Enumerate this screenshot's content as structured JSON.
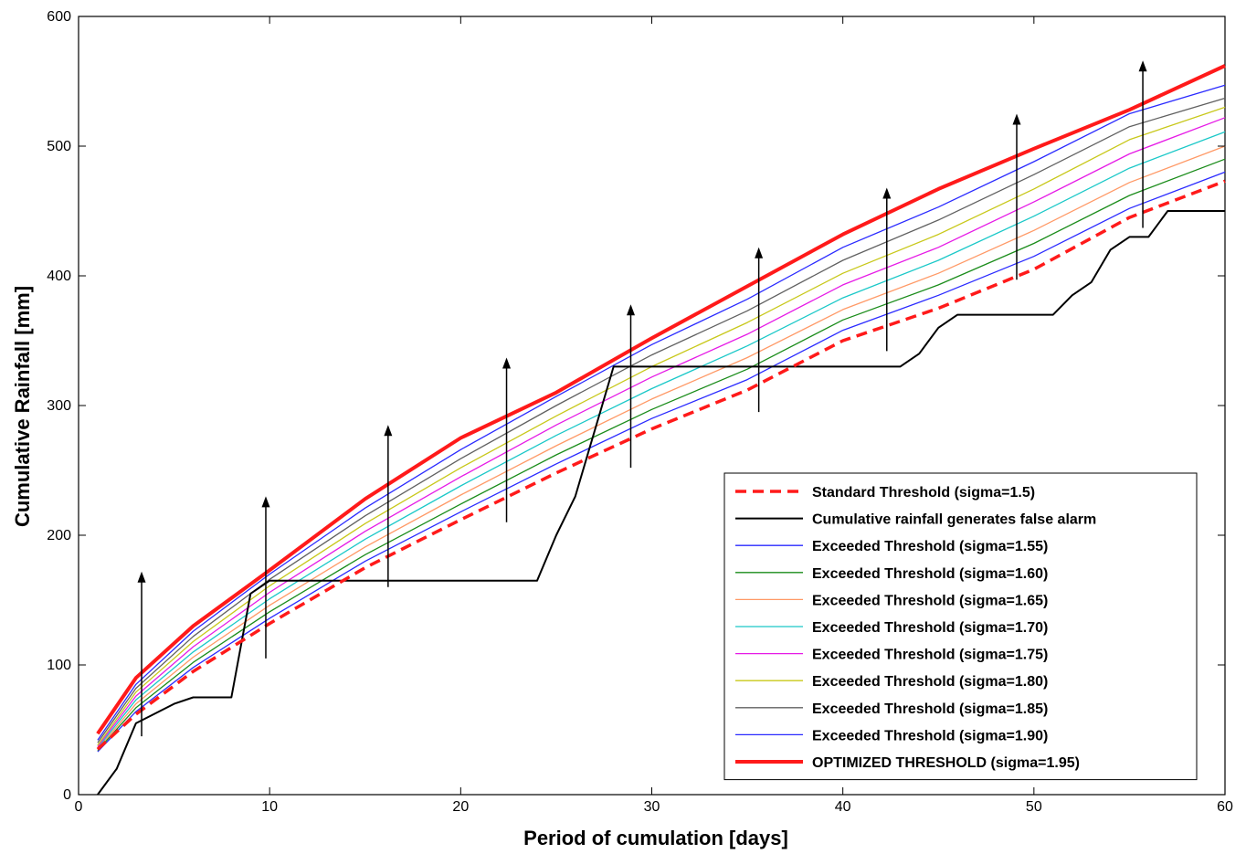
{
  "chart_data": {
    "type": "line",
    "xlabel": "Period of cumulation [days]",
    "ylabel": "Cumulative Rainfall [mm]",
    "xlim": [
      0,
      60
    ],
    "ylim": [
      0,
      600
    ],
    "xticks": [
      0,
      10,
      20,
      30,
      40,
      50,
      60
    ],
    "yticks": [
      0,
      100,
      200,
      300,
      400,
      500,
      600
    ],
    "grid": false,
    "legend_position": "bottom-right",
    "series": [
      {
        "name": "Standard Threshold (sigma=1.5)",
        "color": "#ff1a1a",
        "style": "dashed",
        "x": [
          1,
          3,
          6,
          10,
          15,
          20,
          25,
          30,
          35,
          40,
          45,
          50,
          55,
          60
        ],
        "y": [
          35,
          62,
          95,
          132,
          175,
          212,
          248,
          282,
          312,
          350,
          375,
          405,
          445,
          473
        ]
      },
      {
        "name": "Cumulative rainfall generates false alarm",
        "color": "#000000",
        "style": "solid",
        "x": [
          1,
          2,
          3,
          5,
          6,
          8,
          9,
          10,
          12,
          24,
          25,
          26,
          28,
          35,
          43,
          44,
          45,
          46,
          51,
          52,
          53,
          54,
          55,
          56,
          57,
          60
        ],
        "y": [
          0,
          20,
          55,
          70,
          75,
          75,
          155,
          165,
          165,
          165,
          200,
          230,
          330,
          330,
          330,
          340,
          360,
          370,
          370,
          385,
          395,
          420,
          430,
          430,
          450,
          450
        ]
      },
      {
        "name": "Exceeded Threshold (sigma=1.55)",
        "color": "#2a2aff",
        "style": "solid",
        "x": [
          1,
          3,
          6,
          10,
          15,
          20,
          25,
          30,
          35,
          40,
          45,
          50,
          55,
          60
        ],
        "y": [
          33,
          64,
          98,
          136,
          180,
          218,
          255,
          290,
          320,
          358,
          385,
          415,
          452,
          480
        ]
      },
      {
        "name": "Exceeded Threshold (sigma=1.60)",
        "color": "#1a8c1a",
        "style": "solid",
        "x": [
          1,
          3,
          6,
          10,
          15,
          20,
          25,
          30,
          35,
          40,
          45,
          50,
          55,
          60
        ],
        "y": [
          34,
          67,
          102,
          141,
          185,
          224,
          262,
          297,
          328,
          366,
          393,
          425,
          462,
          490
        ]
      },
      {
        "name": "Exceeded Threshold (sigma=1.65)",
        "color": "#ff9966",
        "style": "solid",
        "x": [
          1,
          3,
          6,
          10,
          15,
          20,
          25,
          30,
          35,
          40,
          45,
          50,
          55,
          60
        ],
        "y": [
          35,
          70,
          106,
          146,
          191,
          231,
          269,
          305,
          337,
          374,
          402,
          435,
          472,
          500
        ]
      },
      {
        "name": "Exceeded Threshold (sigma=1.70)",
        "color": "#1ac8c8",
        "style": "solid",
        "x": [
          1,
          3,
          6,
          10,
          15,
          20,
          25,
          30,
          35,
          40,
          45,
          50,
          55,
          60
        ],
        "y": [
          36,
          73,
          110,
          151,
          197,
          238,
          277,
          313,
          346,
          383,
          412,
          446,
          483,
          511
        ]
      },
      {
        "name": "Exceeded Threshold (sigma=1.75)",
        "color": "#e61ae6",
        "style": "solid",
        "x": [
          1,
          3,
          6,
          10,
          15,
          20,
          25,
          30,
          35,
          40,
          45,
          50,
          55,
          60
        ],
        "y": [
          37,
          76,
          114,
          156,
          203,
          245,
          285,
          322,
          355,
          393,
          422,
          457,
          494,
          522
        ]
      },
      {
        "name": "Exceeded Threshold (sigma=1.80)",
        "color": "#c8c81a",
        "style": "solid",
        "x": [
          1,
          3,
          6,
          10,
          15,
          20,
          25,
          30,
          35,
          40,
          45,
          50,
          55,
          60
        ],
        "y": [
          38,
          79,
          118,
          161,
          209,
          252,
          292,
          330,
          364,
          402,
          432,
          467,
          505,
          530
        ]
      },
      {
        "name": "Exceeded Threshold (sigma=1.85)",
        "color": "#606060",
        "style": "solid",
        "x": [
          1,
          3,
          6,
          10,
          15,
          20,
          25,
          30,
          35,
          40,
          45,
          50,
          55,
          60
        ],
        "y": [
          40,
          82,
          122,
          166,
          215,
          259,
          300,
          339,
          373,
          412,
          443,
          478,
          515,
          537
        ]
      },
      {
        "name": "Exceeded Threshold (sigma=1.90)",
        "color": "#2a2aff",
        "style": "solid",
        "x": [
          1,
          3,
          6,
          10,
          15,
          20,
          25,
          30,
          35,
          40,
          45,
          50,
          55,
          60
        ],
        "y": [
          42,
          85,
          126,
          170,
          221,
          266,
          307,
          347,
          382,
          422,
          453,
          488,
          525,
          547
        ]
      },
      {
        "name": "OPTIMIZED THRESHOLD (sigma=1.95)",
        "color": "#ff1a1a",
        "style": "thick",
        "x": [
          1,
          3,
          6,
          10,
          15,
          20,
          25,
          30,
          35,
          40,
          45,
          50,
          55,
          60
        ],
        "y": [
          47,
          90,
          130,
          173,
          228,
          275,
          310,
          352,
          392,
          432,
          467,
          498,
          528,
          562
        ]
      }
    ],
    "arrows": [
      {
        "x": 3.3,
        "y_from": 45,
        "y_to": 172
      },
      {
        "x": 9.8,
        "y_from": 105,
        "y_to": 230
      },
      {
        "x": 16.2,
        "y_from": 160,
        "y_to": 285
      },
      {
        "x": 22.4,
        "y_from": 210,
        "y_to": 337
      },
      {
        "x": 28.9,
        "y_from": 252,
        "y_to": 378
      },
      {
        "x": 35.6,
        "y_from": 295,
        "y_to": 422
      },
      {
        "x": 42.3,
        "y_from": 342,
        "y_to": 468
      },
      {
        "x": 49.1,
        "y_from": 397,
        "y_to": 525
      },
      {
        "x": 55.7,
        "y_from": 437,
        "y_to": 566
      }
    ]
  }
}
